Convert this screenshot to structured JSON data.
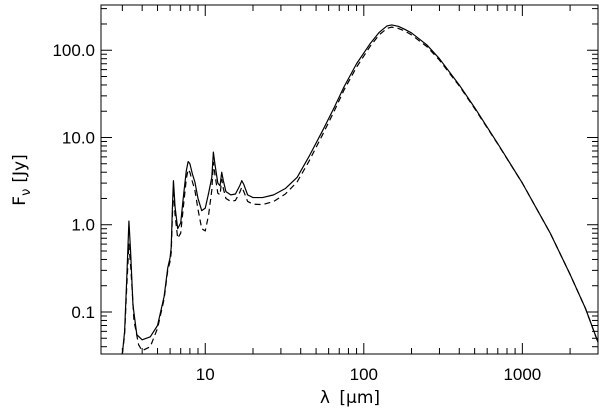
{
  "chart_data": {
    "type": "line",
    "x_scale": "log",
    "y_scale": "log",
    "xlim": [
      2.2,
      3000
    ],
    "ylim": [
      0.033,
      330
    ],
    "grid": false,
    "legend": "none",
    "xlabel": {
      "symbol": "λ",
      "unit_prefix": "[",
      "unit_mu": "μ",
      "unit_rest": "m]"
    },
    "ylabel": {
      "main": "F",
      "sub": "ν",
      "unit": "[Jy]"
    },
    "x_ticks": [
      {
        "value": 10,
        "label": "10"
      },
      {
        "value": 100,
        "label": "100"
      },
      {
        "value": 1000,
        "label": "1000"
      }
    ],
    "y_ticks": [
      {
        "value": 0.1,
        "label": "0.1"
      },
      {
        "value": 1,
        "label": "1.0"
      },
      {
        "value": 10,
        "label": "10.0"
      },
      {
        "value": 100,
        "label": "100.0"
      }
    ],
    "series": [
      {
        "style": "solid",
        "points": [
          [
            3.0,
            0.033
          ],
          [
            3.1,
            0.06
          ],
          [
            3.2,
            0.25
          ],
          [
            3.3,
            1.1
          ],
          [
            3.38,
            0.5
          ],
          [
            3.5,
            0.12
          ],
          [
            3.7,
            0.055
          ],
          [
            4.0,
            0.048
          ],
          [
            4.5,
            0.052
          ],
          [
            5.0,
            0.07
          ],
          [
            5.5,
            0.15
          ],
          [
            5.8,
            0.32
          ],
          [
            6.0,
            0.42
          ],
          [
            6.1,
            0.55
          ],
          [
            6.2,
            1.5
          ],
          [
            6.3,
            3.2
          ],
          [
            6.45,
            1.6
          ],
          [
            6.7,
            0.9
          ],
          [
            7.0,
            1.05
          ],
          [
            7.3,
            2.2
          ],
          [
            7.6,
            4.2
          ],
          [
            7.8,
            5.3
          ],
          [
            8.0,
            5.0
          ],
          [
            8.3,
            3.8
          ],
          [
            8.6,
            3.1
          ],
          [
            9.0,
            2.0
          ],
          [
            9.5,
            1.45
          ],
          [
            10.0,
            1.55
          ],
          [
            10.5,
            2.3
          ],
          [
            11.0,
            3.5
          ],
          [
            11.25,
            6.8
          ],
          [
            11.5,
            5.0
          ],
          [
            12.0,
            3.0
          ],
          [
            12.4,
            2.8
          ],
          [
            12.7,
            4.0
          ],
          [
            13.0,
            3.2
          ],
          [
            13.5,
            2.4
          ],
          [
            14.5,
            2.2
          ],
          [
            15.5,
            2.25
          ],
          [
            16.5,
            2.8
          ],
          [
            17.0,
            3.2
          ],
          [
            17.5,
            2.9
          ],
          [
            18.5,
            2.2
          ],
          [
            20,
            2.05
          ],
          [
            23,
            2.05
          ],
          [
            27,
            2.2
          ],
          [
            32,
            2.6
          ],
          [
            38,
            3.5
          ],
          [
            45,
            6
          ],
          [
            55,
            12
          ],
          [
            65,
            22
          ],
          [
            75,
            38
          ],
          [
            90,
            70
          ],
          [
            110,
            120
          ],
          [
            125,
            160
          ],
          [
            140,
            190
          ],
          [
            150,
            195
          ],
          [
            165,
            188
          ],
          [
            180,
            175
          ],
          [
            200,
            158
          ],
          [
            250,
            115
          ],
          [
            300,
            80
          ],
          [
            400,
            40
          ],
          [
            500,
            22
          ],
          [
            700,
            8.5
          ],
          [
            1000,
            3.0
          ],
          [
            1500,
            0.8
          ],
          [
            2000,
            0.27
          ],
          [
            2500,
            0.11
          ],
          [
            3000,
            0.045
          ]
        ]
      },
      {
        "style": "dashed",
        "points": [
          [
            3.0,
            0.033
          ],
          [
            3.1,
            0.055
          ],
          [
            3.2,
            0.2
          ],
          [
            3.3,
            0.6
          ],
          [
            3.4,
            0.3
          ],
          [
            3.55,
            0.08
          ],
          [
            3.8,
            0.042
          ],
          [
            4.0,
            0.036
          ],
          [
            4.5,
            0.04
          ],
          [
            5.0,
            0.065
          ],
          [
            5.5,
            0.14
          ],
          [
            5.8,
            0.3
          ],
          [
            6.0,
            0.38
          ],
          [
            6.1,
            0.48
          ],
          [
            6.2,
            1.2
          ],
          [
            6.3,
            2.6
          ],
          [
            6.45,
            1.3
          ],
          [
            6.7,
            0.7
          ],
          [
            7.0,
            0.8
          ],
          [
            7.3,
            1.7
          ],
          [
            7.6,
            3.4
          ],
          [
            7.8,
            4.3
          ],
          [
            8.0,
            4.0
          ],
          [
            8.3,
            3.1
          ],
          [
            8.6,
            2.5
          ],
          [
            9.0,
            1.5
          ],
          [
            9.5,
            0.9
          ],
          [
            10.0,
            0.85
          ],
          [
            10.5,
            1.3
          ],
          [
            11.0,
            2.5
          ],
          [
            11.25,
            5.2
          ],
          [
            11.5,
            3.8
          ],
          [
            12.0,
            2.3
          ],
          [
            12.4,
            2.2
          ],
          [
            12.7,
            3.3
          ],
          [
            13.0,
            2.6
          ],
          [
            13.5,
            2.0
          ],
          [
            14.5,
            1.85
          ],
          [
            15.5,
            1.9
          ],
          [
            16.5,
            2.35
          ],
          [
            17.0,
            2.7
          ],
          [
            17.5,
            2.4
          ],
          [
            18.5,
            1.85
          ],
          [
            20,
            1.72
          ],
          [
            23,
            1.7
          ],
          [
            27,
            1.85
          ],
          [
            32,
            2.25
          ],
          [
            38,
            3.1
          ],
          [
            45,
            5.3
          ],
          [
            55,
            10.8
          ],
          [
            65,
            20
          ],
          [
            75,
            35
          ],
          [
            90,
            64
          ],
          [
            110,
            112
          ],
          [
            125,
            150
          ],
          [
            140,
            178
          ],
          [
            150,
            184
          ],
          [
            165,
            178
          ],
          [
            180,
            167
          ],
          [
            200,
            150
          ],
          [
            250,
            110
          ],
          [
            300,
            77
          ],
          [
            400,
            39
          ],
          [
            500,
            21.5
          ],
          [
            700,
            8.4
          ],
          [
            1000,
            3.0
          ],
          [
            1500,
            0.8
          ],
          [
            2000,
            0.27
          ],
          [
            2500,
            0.11
          ],
          [
            3000,
            0.045
          ]
        ]
      }
    ]
  }
}
